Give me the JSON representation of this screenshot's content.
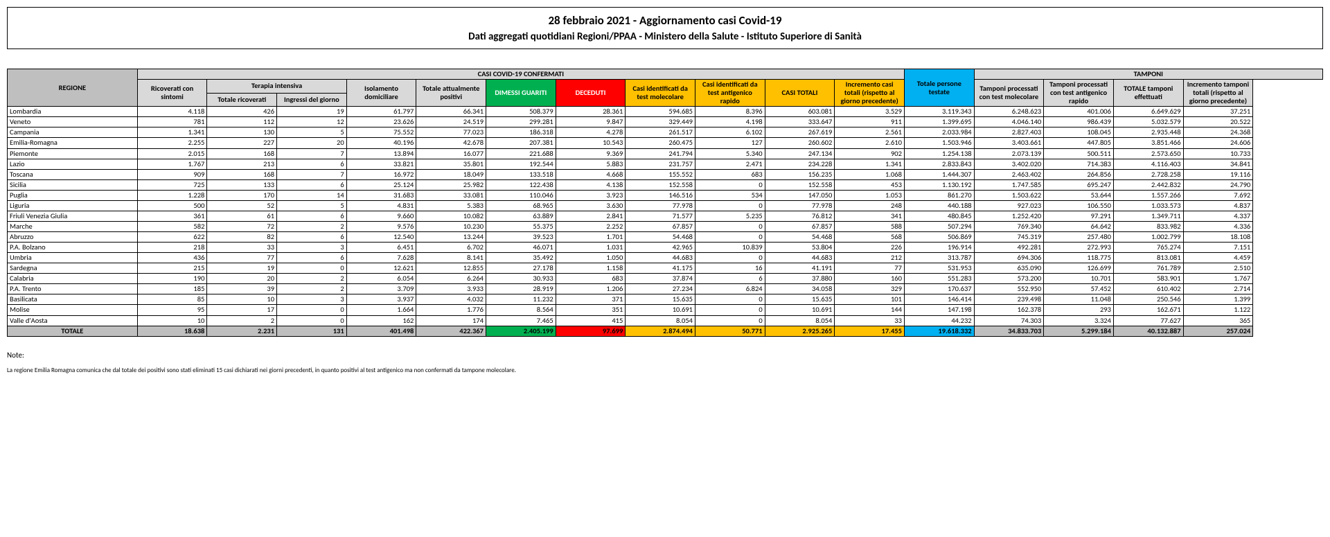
{
  "title": {
    "line1": "28 febbraio 2021 - Aggiornamento casi Covid-19",
    "line2": "Dati aggregati quotidiani Regioni/PPAA - Ministero della Salute - Istituto Superiore di Sanità"
  },
  "headers": {
    "regione": "REGIONE",
    "casi_confermati": "CASI COVID-19 CONFERMATI",
    "tamponi": "TAMPONI",
    "terapia_intensiva": "Terapia intensiva",
    "ricoverati_sintomi": "Ricoverati con sintomi",
    "totale_ricoverati": "Totale ricoverati",
    "ingressi_giorno": "Ingressi del giorno",
    "isolamento": "Isolamento domiciliare",
    "totale_positivi": "Totale attualmente positivi",
    "dimessi": "DIMESSI GUARITI",
    "deceduti": "DECEDUTI",
    "casi_molecolare": "Casi identificati da test molecolare",
    "casi_antigenico": "Casi identificati da test antigenico rapido",
    "casi_totali": "CASI TOTALI",
    "incremento_casi": "Incremento casi totali (rispetto al giorno precedente)",
    "persone_testate": "Totale persone testate",
    "tamponi_molecolare": "Tamponi processati con test molecolare",
    "tamponi_antigenico": "Tamponi processati con test antigenico rapido",
    "totale_tamponi": "TOTALE tamponi effettuati",
    "incremento_tamponi": "Incremento tamponi totali (rispetto al giorno precedente)"
  },
  "rows": [
    {
      "r": "Lombardia",
      "v": [
        "4.118",
        "426",
        "19",
        "61.797",
        "66.341",
        "508.379",
        "28.361",
        "594.685",
        "8.396",
        "603.081",
        "3.529",
        "3.119.343",
        "6.248.623",
        "401.006",
        "6.649.629",
        "37.251"
      ]
    },
    {
      "r": "Veneto",
      "v": [
        "781",
        "112",
        "12",
        "23.626",
        "24.519",
        "299.281",
        "9.847",
        "329.449",
        "4.198",
        "333.647",
        "911",
        "1.399.695",
        "4.046.140",
        "986.439",
        "5.032.579",
        "20.522"
      ]
    },
    {
      "r": "Campania",
      "v": [
        "1.341",
        "130",
        "5",
        "75.552",
        "77.023",
        "186.318",
        "4.278",
        "261.517",
        "6.102",
        "267.619",
        "2.561",
        "2.033.984",
        "2.827.403",
        "108.045",
        "2.935.448",
        "24.368"
      ]
    },
    {
      "r": "Emilia-Romagna",
      "v": [
        "2.255",
        "227",
        "20",
        "40.196",
        "42.678",
        "207.381",
        "10.543",
        "260.475",
        "127",
        "260.602",
        "2.610",
        "1.503.946",
        "3.403.661",
        "447.805",
        "3.851.466",
        "24.606"
      ]
    },
    {
      "r": "Piemonte",
      "v": [
        "2.015",
        "168",
        "7",
        "13.894",
        "16.077",
        "221.688",
        "9.369",
        "241.794",
        "5.340",
        "247.134",
        "902",
        "1.254.138",
        "2.073.139",
        "500.511",
        "2.573.650",
        "10.733"
      ]
    },
    {
      "r": "Lazio",
      "v": [
        "1.767",
        "213",
        "6",
        "33.821",
        "35.801",
        "192.544",
        "5.883",
        "231.757",
        "2.471",
        "234.228",
        "1.341",
        "2.833.843",
        "3.402.020",
        "714.383",
        "4.116.403",
        "34.841"
      ]
    },
    {
      "r": "Toscana",
      "v": [
        "909",
        "168",
        "7",
        "16.972",
        "18.049",
        "133.518",
        "4.668",
        "155.552",
        "683",
        "156.235",
        "1.068",
        "1.444.307",
        "2.463.402",
        "264.856",
        "2.728.258",
        "19.116"
      ]
    },
    {
      "r": "Sicilia",
      "v": [
        "725",
        "133",
        "6",
        "25.124",
        "25.982",
        "122.438",
        "4.138",
        "152.558",
        "0",
        "152.558",
        "453",
        "1.130.192",
        "1.747.585",
        "695.247",
        "2.442.832",
        "24.790"
      ]
    },
    {
      "r": "Puglia",
      "v": [
        "1.228",
        "170",
        "14",
        "31.683",
        "33.081",
        "110.046",
        "3.923",
        "146.516",
        "534",
        "147.050",
        "1.053",
        "861.270",
        "1.503.622",
        "53.644",
        "1.557.266",
        "7.692"
      ]
    },
    {
      "r": "Liguria",
      "v": [
        "500",
        "52",
        "5",
        "4.831",
        "5.383",
        "68.965",
        "3.630",
        "77.978",
        "0",
        "77.978",
        "248",
        "440.188",
        "927.023",
        "106.550",
        "1.033.573",
        "4.837"
      ]
    },
    {
      "r": "Friuli Venezia Giulia",
      "v": [
        "361",
        "61",
        "6",
        "9.660",
        "10.082",
        "63.889",
        "2.841",
        "71.577",
        "5.235",
        "76.812",
        "341",
        "480.845",
        "1.252.420",
        "97.291",
        "1.349.711",
        "4.337"
      ]
    },
    {
      "r": "Marche",
      "v": [
        "582",
        "72",
        "2",
        "9.576",
        "10.230",
        "55.375",
        "2.252",
        "67.857",
        "0",
        "67.857",
        "588",
        "507.294",
        "769.340",
        "64.642",
        "833.982",
        "4.336"
      ]
    },
    {
      "r": "Abruzzo",
      "v": [
        "622",
        "82",
        "6",
        "12.540",
        "13.244",
        "39.523",
        "1.701",
        "54.468",
        "0",
        "54.468",
        "568",
        "506.869",
        "745.319",
        "257.480",
        "1.002.799",
        "18.108"
      ]
    },
    {
      "r": "P.A. Bolzano",
      "v": [
        "218",
        "33",
        "3",
        "6.451",
        "6.702",
        "46.071",
        "1.031",
        "42.965",
        "10.839",
        "53.804",
        "226",
        "196.914",
        "492.281",
        "272.993",
        "765.274",
        "7.151"
      ]
    },
    {
      "r": "Umbria",
      "v": [
        "436",
        "77",
        "6",
        "7.628",
        "8.141",
        "35.492",
        "1.050",
        "44.683",
        "0",
        "44.683",
        "212",
        "313.787",
        "694.306",
        "118.775",
        "813.081",
        "4.459"
      ]
    },
    {
      "r": "Sardegna",
      "v": [
        "215",
        "19",
        "0",
        "12.621",
        "12.855",
        "27.178",
        "1.158",
        "41.175",
        "16",
        "41.191",
        "77",
        "531.953",
        "635.090",
        "126.699",
        "761.789",
        "2.510"
      ]
    },
    {
      "r": "Calabria",
      "v": [
        "190",
        "20",
        "2",
        "6.054",
        "6.264",
        "30.933",
        "683",
        "37.874",
        "6",
        "37.880",
        "160",
        "551.283",
        "573.200",
        "10.701",
        "583.901",
        "1.767"
      ]
    },
    {
      "r": "P.A. Trento",
      "v": [
        "185",
        "39",
        "2",
        "3.709",
        "3.933",
        "28.919",
        "1.206",
        "27.234",
        "6.824",
        "34.058",
        "329",
        "170.637",
        "552.950",
        "57.452",
        "610.402",
        "2.714"
      ]
    },
    {
      "r": "Basilicata",
      "v": [
        "85",
        "10",
        "3",
        "3.937",
        "4.032",
        "11.232",
        "371",
        "15.635",
        "0",
        "15.635",
        "101",
        "146.414",
        "239.498",
        "11.048",
        "250.546",
        "1.399"
      ]
    },
    {
      "r": "Molise",
      "v": [
        "95",
        "17",
        "0",
        "1.664",
        "1.776",
        "8.564",
        "351",
        "10.691",
        "0",
        "10.691",
        "144",
        "147.198",
        "162.378",
        "293",
        "162.671",
        "1.122"
      ]
    },
    {
      "r": "Valle d'Aosta",
      "v": [
        "10",
        "2",
        "0",
        "162",
        "174",
        "7.465",
        "415",
        "8.054",
        "0",
        "8.054",
        "33",
        "44.232",
        "74.303",
        "3.324",
        "77.627",
        "365"
      ]
    }
  ],
  "total": {
    "r": "TOTALE",
    "v": [
      "18.638",
      "2.231",
      "131",
      "401.498",
      "422.367",
      "2.405.199",
      "97.699",
      "2.874.494",
      "50.771",
      "2.925.265",
      "17.455",
      "19.618.332",
      "34.833.703",
      "5.299.184",
      "40.132.887",
      "257.024"
    ]
  },
  "notes": {
    "head": "Note:",
    "body": "La regione Emilia Romagna comunica che dal totale dei positivi sono stati eliminati 15 casi dichiarati nei giorni precedenti, in quanto positivi al test antigenico ma non confermati da tampone molecolare."
  },
  "colColors": [
    "",
    "",
    "",
    "",
    "",
    "green",
    "red",
    "orange",
    "orange",
    "orange",
    "orange",
    "blue",
    "",
    "",
    "",
    ""
  ]
}
